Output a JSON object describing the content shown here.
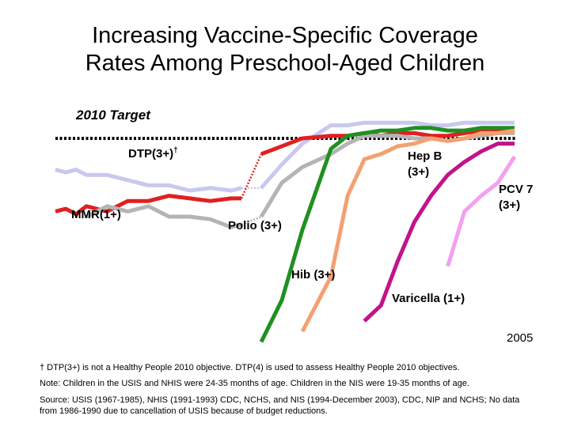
{
  "title_line1": "Increasing Vaccine-Specific Coverage",
  "title_line2": "Rates Among Preschool-Aged Children",
  "chart_data": {
    "type": "line",
    "ylabel": "",
    "xlabel": "",
    "ylim": [
      0,
      100
    ],
    "end_year_label": "2005",
    "target": {
      "label": "2010 Target",
      "value": 90
    },
    "series": [
      {
        "name": "DTP(3+)†",
        "color": "#c8c8f0",
        "x": [
          1967,
          1968,
          1969,
          1970,
          1972,
          1974,
          1976,
          1978,
          1980,
          1982,
          1984,
          1985,
          1991,
          1992,
          1993,
          1994,
          1995,
          1996,
          1997,
          1998,
          1999,
          2000,
          2001,
          2002,
          2003,
          2004,
          2005
        ],
        "y": [
          78,
          77,
          78,
          76,
          76,
          74,
          72,
          72,
          70,
          71,
          70,
          71,
          71,
          80,
          88,
          95,
          95,
          96,
          96,
          96,
          96,
          95,
          95,
          96,
          96,
          96,
          96
        ]
      },
      {
        "name": "MMR(1+)",
        "color": "#e02020",
        "x": [
          1967,
          1968,
          1969,
          1970,
          1972,
          1974,
          1976,
          1978,
          1980,
          1982,
          1984,
          1985,
          1991,
          1992,
          1993,
          1994,
          1995,
          1996,
          1997,
          1998,
          1999,
          2000,
          2001,
          2002,
          2003,
          2004,
          2005
        ],
        "y": [
          62,
          63,
          61,
          64,
          62,
          66,
          66,
          68,
          67,
          66,
          67,
          67,
          84,
          87,
          90,
          91,
          91,
          92,
          91,
          92,
          92,
          91,
          91,
          92,
          93,
          93,
          92
        ]
      },
      {
        "name": "Polio (3+)",
        "color": "#b4b4b4",
        "x": [
          1970,
          1972,
          1974,
          1976,
          1978,
          1980,
          1982,
          1984,
          1985,
          1991,
          1992,
          1993,
          1994,
          1995,
          1996,
          1997,
          1998,
          1999,
          2000,
          2001,
          2002,
          2003,
          2004,
          2005
        ],
        "y": [
          60,
          64,
          62,
          64,
          60,
          60,
          59,
          56,
          57,
          60,
          73,
          79,
          84,
          88,
          91,
          91,
          91,
          90,
          90,
          89,
          90,
          91,
          92,
          92
        ]
      },
      {
        "name": "Hib (3+)",
        "color": "#209020",
        "x": [
          1991,
          1992,
          1993,
          1994,
          1995,
          1996,
          1997,
          1998,
          1999,
          2000,
          2001,
          2002,
          2003,
          2004,
          2005
        ],
        "y": [
          12,
          28,
          55,
          86,
          91,
          92,
          93,
          93,
          94,
          94,
          93,
          93,
          94,
          94,
          94
        ]
      },
      {
        "name": "Hep B (3+)",
        "color": "#f4a070",
        "x": [
          1993,
          1994,
          1995,
          1996,
          1997,
          1998,
          1999,
          2000,
          2001,
          2002,
          2003,
          2004,
          2005
        ],
        "y": [
          16,
          37,
          68,
          82,
          84,
          87,
          88,
          90,
          89,
          90,
          92,
          92,
          93
        ]
      },
      {
        "name": "Varicella (1+)",
        "color": "#c0148c",
        "x": [
          1996,
          1997,
          1998,
          1999,
          2000,
          2001,
          2002,
          2003,
          2004,
          2005
        ],
        "y": [
          20,
          26,
          43,
          58,
          68,
          76,
          81,
          85,
          88,
          88
        ]
      },
      {
        "name": "PCV 7 (3+)",
        "color": "#f4a0f0",
        "x": [
          2001,
          2002,
          2003,
          2004,
          2005
        ],
        "y": [
          41,
          62,
          68,
          73,
          83
        ]
      }
    ]
  },
  "labels": {
    "target": "2010 Target",
    "dtp": "DTP(3+)",
    "dtp_sup": "†",
    "mmr": "MMR(1+)",
    "polio": "Polio (3+)",
    "hib": "Hib (3+)",
    "hepb_line1": "Hep B",
    "hepb_line2": "(3+)",
    "pcv_line1": "PCV 7",
    "pcv_line2": "(3+)",
    "varicella": "Varicella (1+)",
    "year": "2005"
  },
  "footnotes": {
    "dtp_note": "† DTP(3+) is not a Healthy People 2010 objective.  DTP(4) is used to assess Healthy People 2010 objectives.",
    "age_note": "Note:  Children in the USIS and NHIS were 24-35 months of age.  Children in the NIS were 19-35 months of age.",
    "source_note": "Source: USIS (1967-1985), NHIS (1991-1993) CDC, NCHS, and NIS (1994-December 2003), CDC, NIP and NCHS; No data from 1986-1990 due to cancellation of USIS because of budget reductions."
  }
}
